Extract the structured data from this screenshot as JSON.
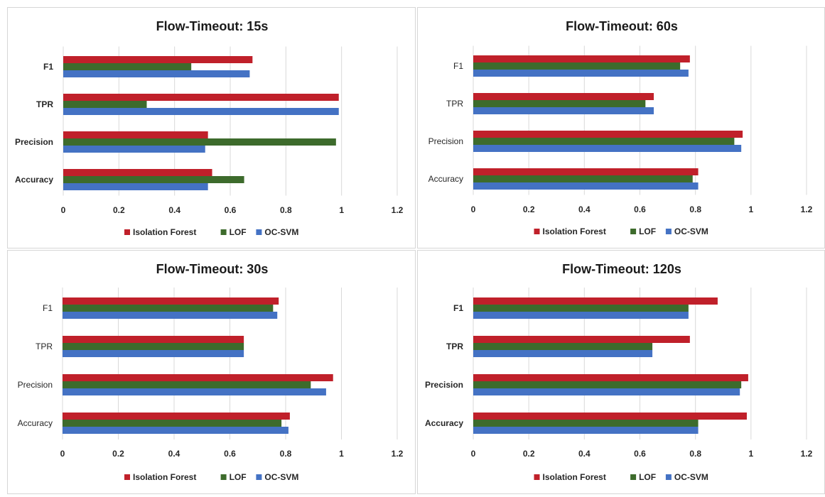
{
  "colors": {
    "Isolation Forest": "#c0202a",
    "LOF": "#3d6b2c",
    "OC-SVM": "#4472c4",
    "gridline": "#d9d9d9"
  },
  "chart_data": [
    {
      "type": "bar",
      "orientation": "horizontal",
      "title": "Flow-Timeout: 15s",
      "categories": [
        "F1",
        "TPR",
        "Precision",
        "Accuracy"
      ],
      "series": [
        {
          "name": "Isolation Forest",
          "values": [
            0.68,
            0.99,
            0.52,
            0.535
          ]
        },
        {
          "name": "LOF",
          "values": [
            0.46,
            0.3,
            0.98,
            0.65
          ]
        },
        {
          "name": "OC-SVM",
          "values": [
            0.67,
            0.99,
            0.51,
            0.52
          ]
        }
      ],
      "xlim": [
        0,
        1.2
      ],
      "xticks": [
        "0",
        "0.2",
        "0.4",
        "0.6",
        "0.8",
        "1",
        "1.2"
      ],
      "legend": "bottom",
      "grid": true
    },
    {
      "type": "bar",
      "orientation": "horizontal",
      "title": "Flow-Timeout: 60s",
      "categories": [
        "F1",
        "TPR",
        "Precision",
        "Accuracy"
      ],
      "series": [
        {
          "name": "Isolation Forest",
          "values": [
            0.78,
            0.65,
            0.97,
            0.81
          ]
        },
        {
          "name": "LOF",
          "values": [
            0.745,
            0.62,
            0.94,
            0.79
          ]
        },
        {
          "name": "OC-SVM",
          "values": [
            0.775,
            0.65,
            0.965,
            0.81
          ]
        }
      ],
      "xlim": [
        0,
        1.2
      ],
      "xticks": [
        "0",
        "0.2",
        "0.4",
        "0.6",
        "0.8",
        "1",
        "1.2"
      ],
      "legend": "bottom",
      "grid": true
    },
    {
      "type": "bar",
      "orientation": "horizontal",
      "title": "Flow-Timeout: 30s",
      "categories": [
        "F1",
        "TPR",
        "Precision",
        "Accuracy"
      ],
      "series": [
        {
          "name": "Isolation Forest",
          "values": [
            0.775,
            0.65,
            0.97,
            0.815
          ]
        },
        {
          "name": "LOF",
          "values": [
            0.755,
            0.65,
            0.89,
            0.785
          ]
        },
        {
          "name": "OC-SVM",
          "values": [
            0.77,
            0.65,
            0.945,
            0.81
          ]
        }
      ],
      "xlim": [
        0,
        1.2
      ],
      "xticks": [
        "0",
        "0.2",
        "0.4",
        "0.6",
        "0.8",
        "1",
        "1.2"
      ],
      "legend": "bottom",
      "grid": true
    },
    {
      "type": "bar",
      "orientation": "horizontal",
      "title": "Flow-Timeout: 120s",
      "categories": [
        "F1",
        "TPR",
        "Precision",
        "Accuracy"
      ],
      "series": [
        {
          "name": "Isolation Forest",
          "values": [
            0.88,
            0.78,
            0.99,
            0.985
          ]
        },
        {
          "name": "LOF",
          "values": [
            0.775,
            0.645,
            0.965,
            0.81
          ]
        },
        {
          "name": "OC-SVM",
          "values": [
            0.775,
            0.645,
            0.96,
            0.81
          ]
        }
      ],
      "xlim": [
        0,
        1.2
      ],
      "xticks": [
        "0",
        "0.2",
        "0.4",
        "0.6",
        "0.8",
        "1",
        "1.2"
      ],
      "legend": "bottom",
      "grid": true
    }
  ]
}
